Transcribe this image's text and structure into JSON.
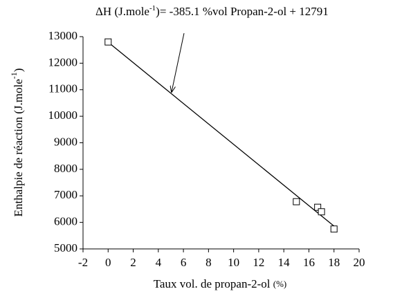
{
  "chart_data": {
    "type": "scatter",
    "annotation": {
      "prefix": "ΔH (J.mole",
      "sup": "-1",
      "middle": ")= ",
      "text": " %vol Propan-2-ol + "
    },
    "fit": {
      "slope": -385.1,
      "intercept": 12791
    },
    "x_label": {
      "main": "Taux vol. de propan-2-ol ",
      "small": "(%)"
    },
    "y_label": {
      "main": "Enthalpie de réaction (J.mole",
      "sup": "-1",
      "end": ")"
    },
    "x": [
      0,
      15,
      16.7,
      17,
      18
    ],
    "values": [
      12800,
      6780,
      6570,
      6400,
      5750
    ],
    "color": "#000000",
    "xlim": [
      -2,
      20
    ],
    "xticks": [
      -2,
      0,
      2,
      4,
      6,
      8,
      10,
      12,
      14,
      16,
      18,
      20
    ],
    "ylim": [
      5000,
      13000
    ],
    "yticks": [
      5000,
      6000,
      7000,
      8000,
      9000,
      10000,
      11000,
      12000,
      13000
    ]
  }
}
